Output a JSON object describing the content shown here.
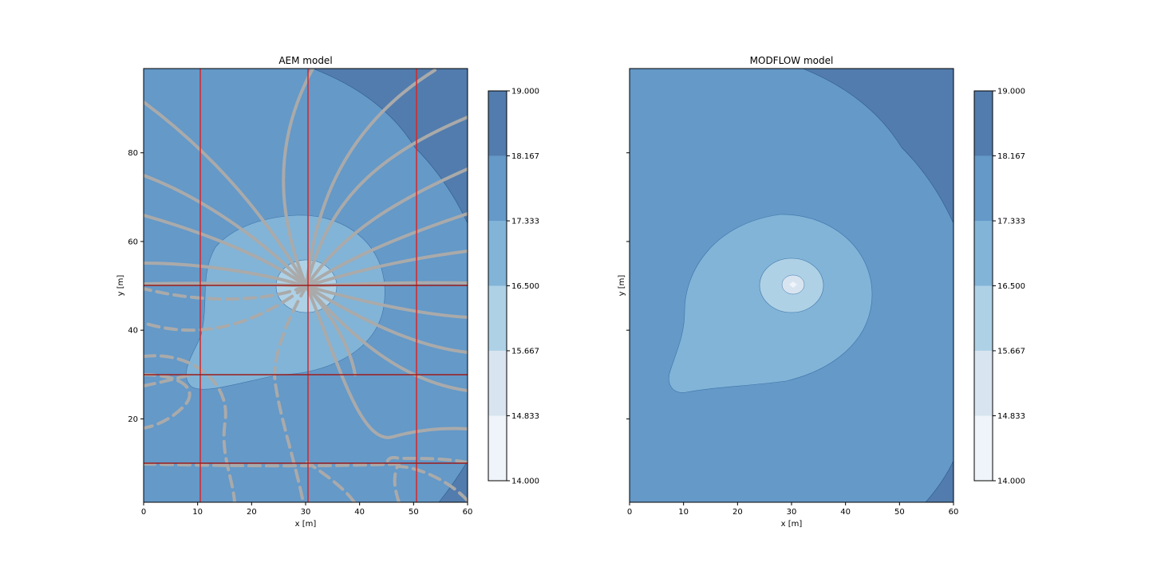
{
  "chart_data": [
    {
      "type": "contour",
      "title": "AEM model",
      "xlabel": "x [m]",
      "ylabel": "y [m]",
      "xlim": [
        0,
        60
      ],
      "ylim": [
        1.2,
        99
      ],
      "xticks": [
        0,
        10,
        20,
        30,
        40,
        50,
        60
      ],
      "yticks": [
        20,
        40,
        60,
        80
      ],
      "ytick_labels_visible": true,
      "contour_levels": [
        14.0,
        14.833,
        15.667,
        16.5,
        17.333,
        18.167,
        19.0
      ],
      "colorbar_tick_labels": [
        "14.000",
        "14.833",
        "15.667",
        "16.500",
        "17.333",
        "18.167",
        "19.000"
      ],
      "colormap": [
        "#eef4fa",
        "#d8e4f0",
        "#aed1e6",
        "#81b4d7",
        "#6499c8",
        "#527cad"
      ],
      "well": {
        "x": 30.2,
        "y": 50
      },
      "overlays": {
        "red_vertical_lines_x": [
          10.5,
          30.5,
          50.5
        ],
        "red_horizontal_lines_y": [
          50,
          30,
          10
        ],
        "streamline_color": "#aaaaaa",
        "line_color": "#d62728"
      }
    },
    {
      "type": "contour",
      "title": "MODFLOW model",
      "xlabel": "x [m]",
      "ylabel": "y [m]",
      "xlim": [
        0,
        60
      ],
      "ylim": [
        1.2,
        99
      ],
      "xticks": [
        0,
        10,
        20,
        30,
        40,
        50,
        60
      ],
      "yticks": [
        20,
        40,
        60,
        80
      ],
      "ytick_labels_visible": false,
      "contour_levels": [
        14.0,
        14.833,
        15.667,
        16.5,
        17.333,
        18.167,
        19.0
      ],
      "colorbar_tick_labels": [
        "14.000",
        "14.833",
        "15.667",
        "16.500",
        "17.333",
        "18.167",
        "19.000"
      ],
      "colormap": [
        "#eef4fa",
        "#d8e4f0",
        "#aed1e6",
        "#81b4d7",
        "#6499c8",
        "#527cad"
      ],
      "well": {
        "x": 30.2,
        "y": 50
      }
    }
  ]
}
